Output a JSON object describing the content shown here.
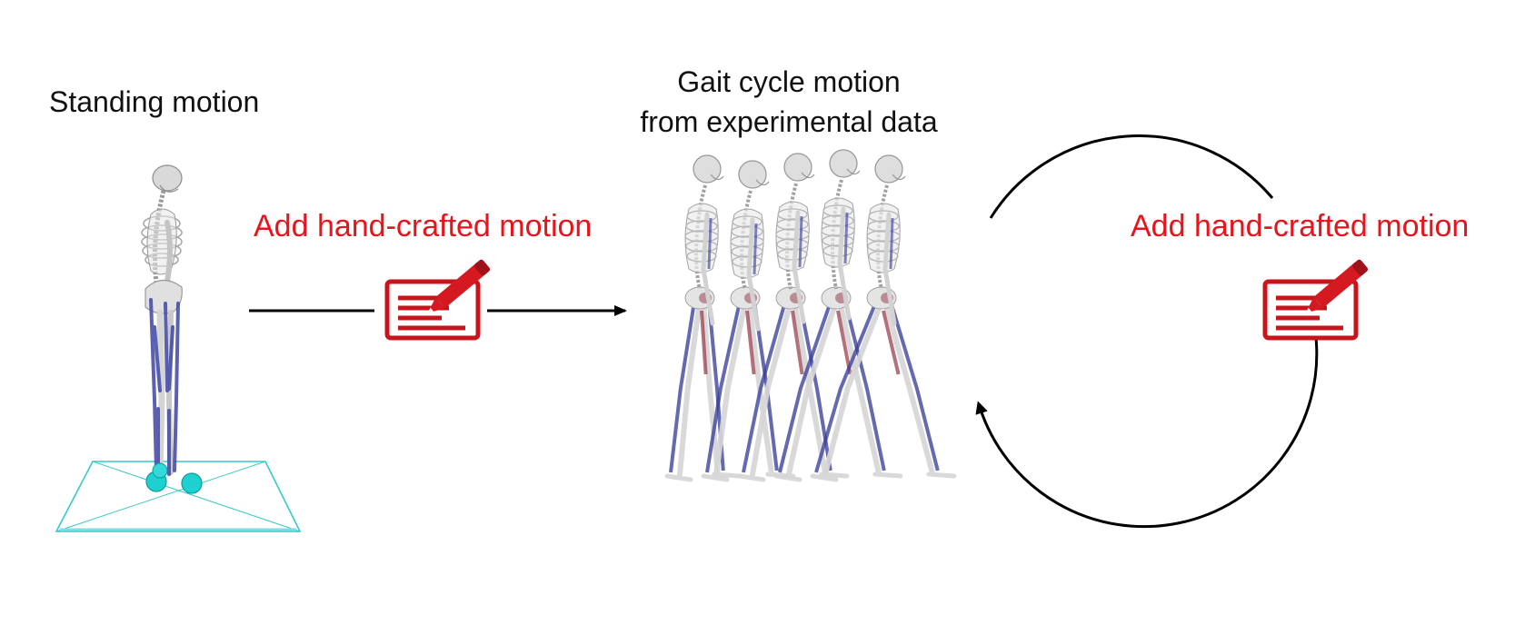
{
  "labels": {
    "standing": "Standing motion",
    "gait_line1": "Gait cycle motion",
    "gait_line2": "from experimental data",
    "add_left": "Add hand-crafted motion",
    "add_right": "Add hand-crafted motion"
  },
  "colors": {
    "accent_red": "#e8141b",
    "text": "#111111",
    "arrow": "#000000",
    "bone": "#d6d6d6",
    "bone_dark": "#9a9a9a",
    "muscle_blue": "#3a3f9a",
    "muscle_red": "#8a2233",
    "floor": "#39c9c9",
    "contact": "#1fd0d0"
  },
  "icons": {
    "edit_left": "document-pencil-icon",
    "edit_right": "document-pencil-icon",
    "cycle": "circular-arrow-icon"
  },
  "figures": {
    "standing_skeleton": "standing-skeleton-figure",
    "gait_sequence_count": 5
  }
}
